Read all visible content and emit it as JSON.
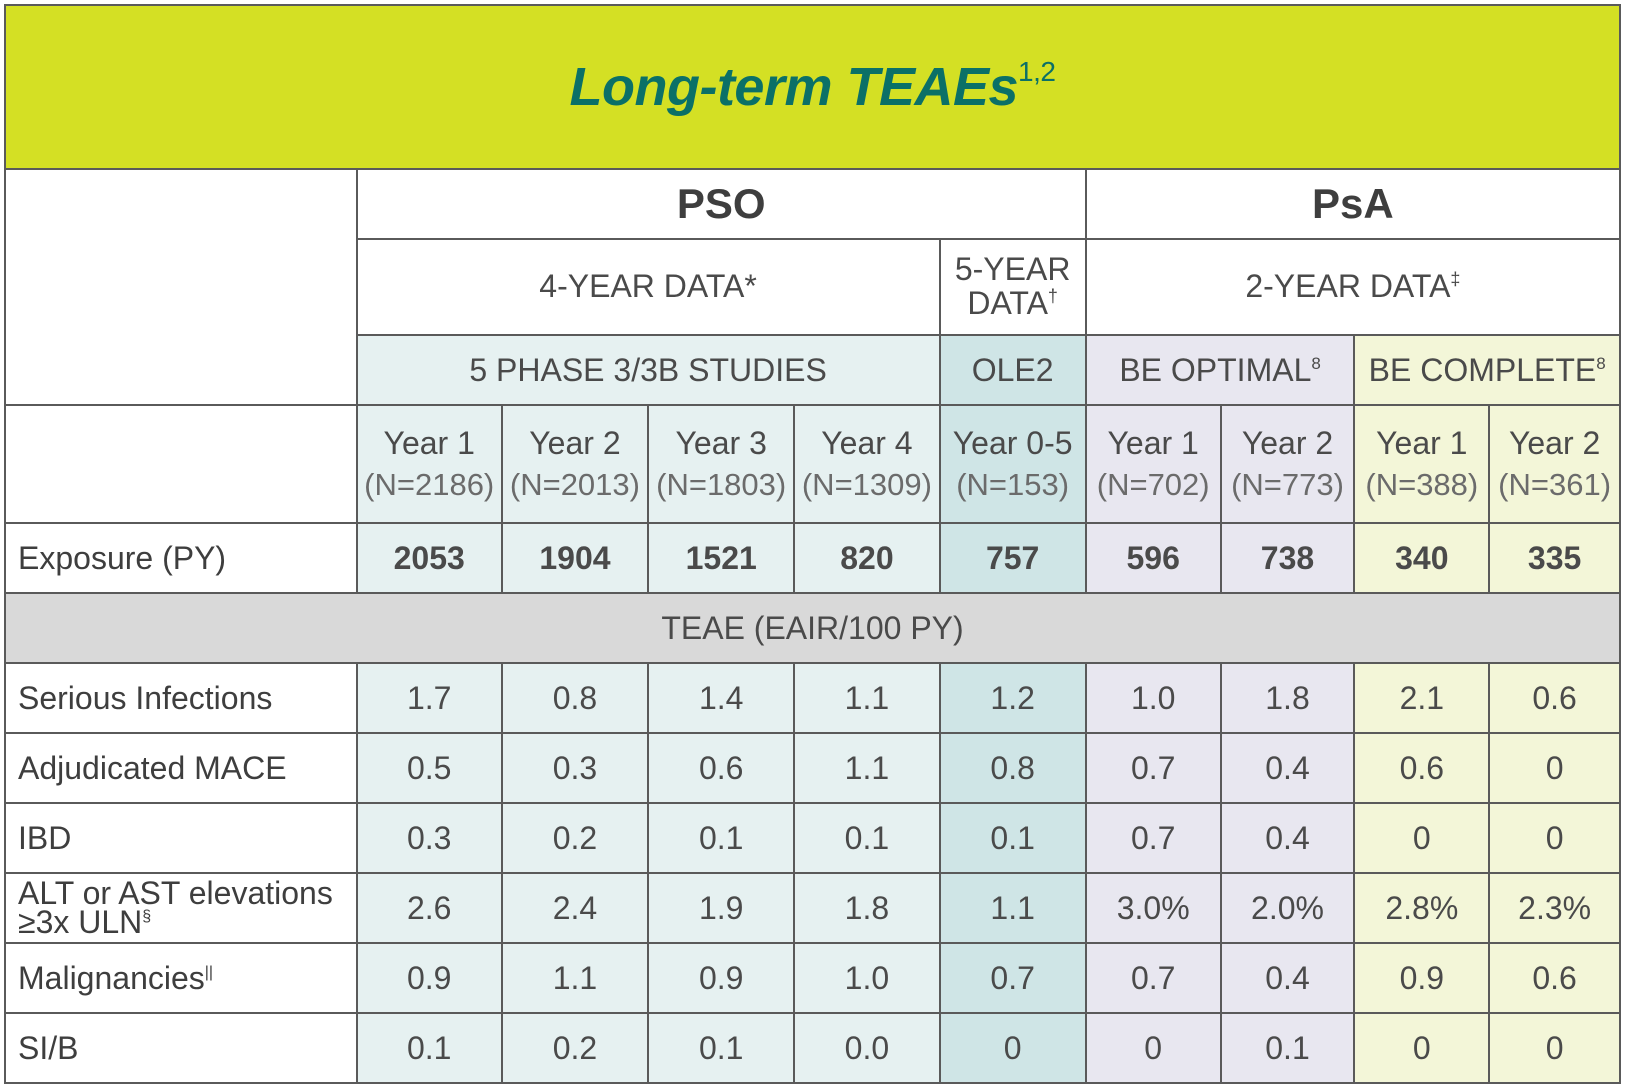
{
  "title": "Long-term TEAEs",
  "title_refs": "1,2",
  "groups": {
    "pso": "PSO",
    "psa": "PsA"
  },
  "data_periods": [
    {
      "label": "4-YEAR DATA",
      "ref": "*"
    },
    {
      "label": "5-YEAR DATA",
      "ref": "†"
    },
    {
      "label": "2-YEAR DATA",
      "ref": "‡"
    }
  ],
  "studies": [
    {
      "label": "5 PHASE 3/3B STUDIES",
      "ref": ""
    },
    {
      "label": "OLE2",
      "ref": ""
    },
    {
      "label": "BE OPTIMAL",
      "ref": "8"
    },
    {
      "label": "BE COMPLETE",
      "ref": "8"
    }
  ],
  "columns": [
    {
      "year": "Year 1",
      "n": "(N=2186)"
    },
    {
      "year": "Year 2",
      "n": "(N=2013)"
    },
    {
      "year": "Year 3",
      "n": "(N=1803)"
    },
    {
      "year": "Year 4",
      "n": "(N=1309)"
    },
    {
      "year": "Year 0-5",
      "n": "(N=153)"
    },
    {
      "year": "Year 1",
      "n": "(N=702)"
    },
    {
      "year": "Year 2",
      "n": "(N=773)"
    },
    {
      "year": "Year 1",
      "n": "(N=388)"
    },
    {
      "year": "Year 2",
      "n": "(N=361)"
    }
  ],
  "exposure": {
    "label": "Exposure (PY)",
    "values": [
      "2053",
      "1904",
      "1521",
      "820",
      "757",
      "596",
      "738",
      "340",
      "335"
    ]
  },
  "section_label": "TEAE (EAIR/100 PY)",
  "rows": [
    {
      "label": "Serious Infections",
      "ref": "",
      "values": [
        "1.7",
        "0.8",
        "1.4",
        "1.1",
        "1.2",
        "1.0",
        "1.8",
        "2.1",
        "0.6"
      ]
    },
    {
      "label": "Adjudicated MACE",
      "ref": "",
      "values": [
        "0.5",
        "0.3",
        "0.6",
        "1.1",
        "0.8",
        "0.7",
        "0.4",
        "0.6",
        "0"
      ]
    },
    {
      "label": "IBD",
      "ref": "",
      "values": [
        "0.3",
        "0.2",
        "0.1",
        "0.1",
        "0.1",
        "0.7",
        "0.4",
        "0",
        "0"
      ]
    },
    {
      "label": "ALT or AST elevations",
      "label_line2": "≥3x ULN",
      "ref": "§",
      "values": [
        "2.6",
        "2.4",
        "1.9",
        "1.8",
        "1.1",
        "3.0%",
        "2.0%",
        "2.8%",
        "2.3%"
      ]
    },
    {
      "label": "Malignancies",
      "ref": "||",
      "values": [
        "0.9",
        "1.1",
        "0.9",
        "1.0",
        "0.7",
        "0.7",
        "0.4",
        "0.9",
        "0.6"
      ]
    },
    {
      "label": "SI/B",
      "ref": "",
      "values": [
        "0.1",
        "0.2",
        "0.1",
        "0.0",
        "0",
        "0",
        "0.1",
        "0",
        "0"
      ]
    }
  ]
}
